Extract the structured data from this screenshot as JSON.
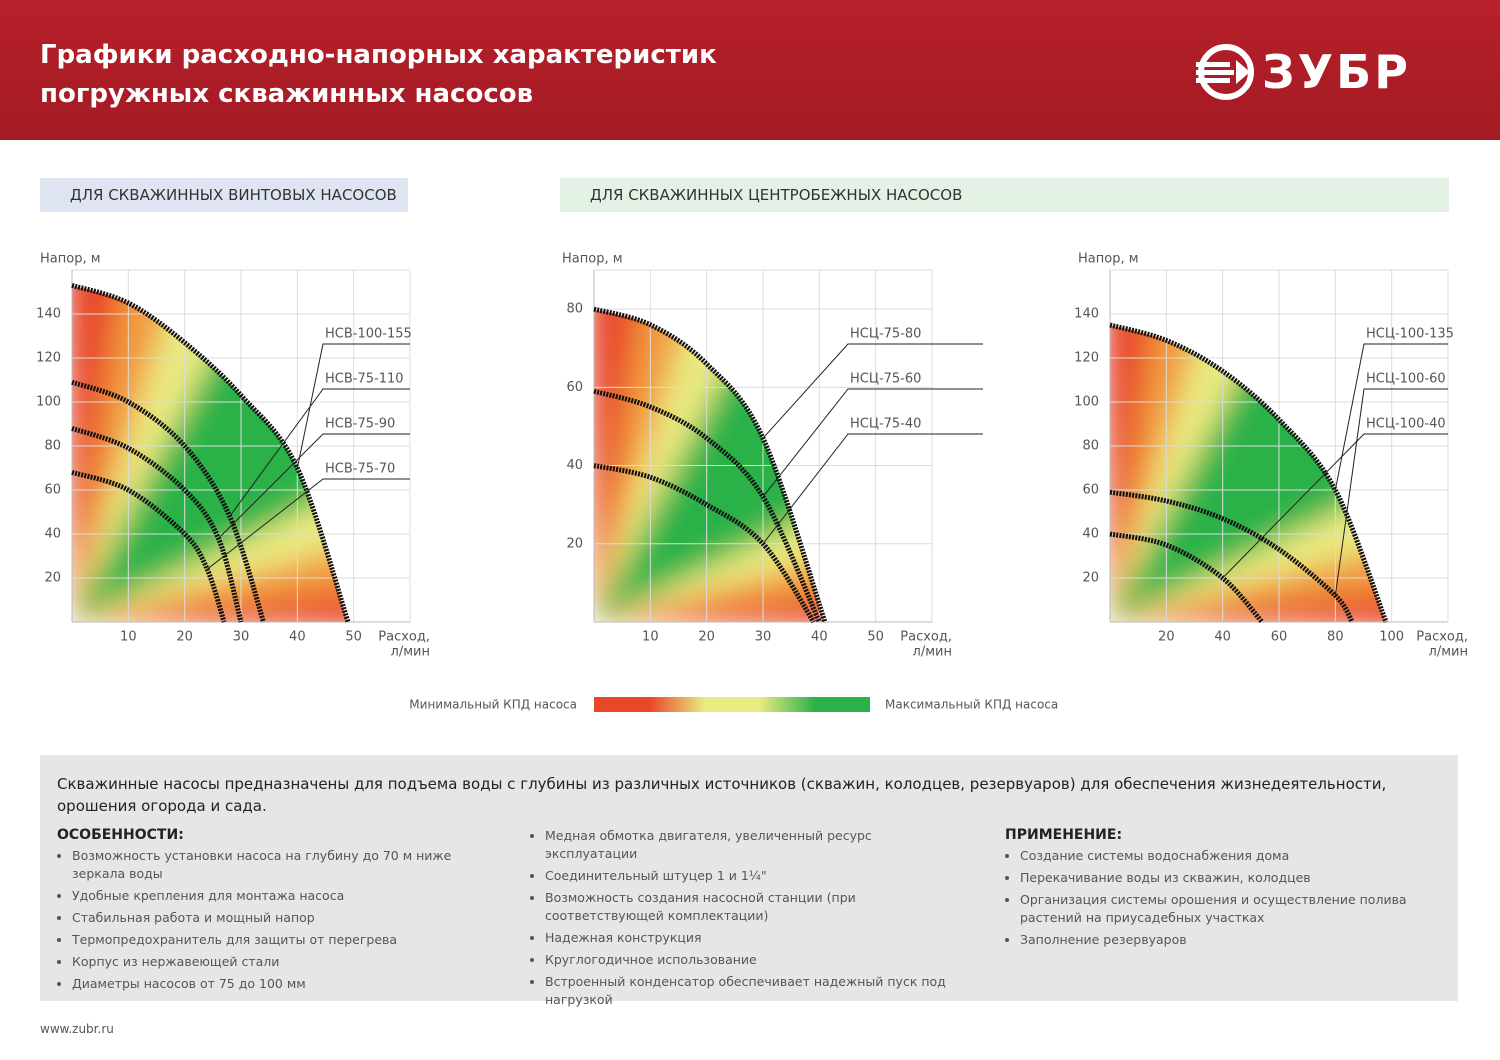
{
  "header": {
    "title": [
      "Графики расходно-напорных характеристик",
      "погружных скважинных насосов"
    ],
    "logo": "ЗУБР"
  },
  "sections": [
    "ДЛЯ СКВАЖИННЫХ ВИНТОВЫХ НАСОСОВ",
    "ДЛЯ СКВАЖИННЫХ ЦЕНТРОБЕЖНЫХ НАСОСОВ"
  ],
  "chart_data": [
    {
      "type": "line",
      "y_label": "Напор, м",
      "x_label": [
        "Расход,",
        "л/мин"
      ],
      "xlim": [
        0,
        60
      ],
      "xticks": [
        10,
        20,
        30,
        40,
        50
      ],
      "ylim": [
        0,
        160
      ],
      "yticks": [
        20,
        40,
        60,
        80,
        100,
        120,
        140
      ],
      "grid": true,
      "series": [
        {
          "name": "НСВ-100-155",
          "color": "#111111",
          "x": [
            0,
            10,
            20,
            30,
            40,
            49
          ],
          "values": [
            153,
            145,
            127,
            103,
            70,
            0
          ]
        },
        {
          "name": "НСВ-75-110",
          "color": "#111111",
          "x": [
            0,
            10,
            20,
            28,
            34
          ],
          "values": [
            109,
            100,
            80,
            48,
            0
          ]
        },
        {
          "name": "НСВ-75-90",
          "color": "#111111",
          "x": [
            0,
            10,
            20,
            26,
            30
          ],
          "values": [
            88,
            79,
            60,
            38,
            0
          ]
        },
        {
          "name": "НСВ-75-70",
          "color": "#111111",
          "x": [
            0,
            10,
            20,
            24,
            27
          ],
          "values": [
            68,
            60,
            40,
            24,
            0
          ]
        }
      ]
    },
    {
      "type": "line",
      "y_label": "Напор, м",
      "x_label": [
        "Расход,",
        "л/мин"
      ],
      "xlim": [
        0,
        60
      ],
      "xticks": [
        10,
        20,
        30,
        40,
        50
      ],
      "ylim": [
        0,
        90
      ],
      "yticks": [
        20,
        40,
        60,
        80
      ],
      "grid": true,
      "series": [
        {
          "name": "НСЦ-75-80",
          "color": "#111111",
          "x": [
            0,
            10,
            20,
            30,
            41
          ],
          "values": [
            80,
            76,
            66,
            47,
            0
          ]
        },
        {
          "name": "НСЦ-75-60",
          "color": "#111111",
          "x": [
            0,
            10,
            20,
            30,
            40
          ],
          "values": [
            59,
            55,
            47,
            32,
            0
          ]
        },
        {
          "name": "НСЦ-75-40",
          "color": "#111111",
          "x": [
            0,
            10,
            20,
            30,
            39
          ],
          "values": [
            40,
            37,
            30,
            20,
            0
          ]
        }
      ]
    },
    {
      "type": "line",
      "y_label": "Напор, м",
      "x_label": [
        "Расход,",
        "л/мин"
      ],
      "xlim": [
        0,
        120
      ],
      "xticks": [
        20,
        40,
        60,
        80,
        100
      ],
      "ylim": [
        0,
        160
      ],
      "yticks": [
        20,
        40,
        60,
        80,
        100,
        120,
        140
      ],
      "grid": true,
      "series": [
        {
          "name": "НСЦ-100-135",
          "color": "#111111",
          "x": [
            0,
            20,
            40,
            60,
            80,
            98
          ],
          "values": [
            135,
            128,
            114,
            92,
            60,
            0
          ]
        },
        {
          "name": "НСЦ-100-60",
          "color": "#111111",
          "x": [
            0,
            20,
            40,
            60,
            80,
            86
          ],
          "values": [
            59,
            55,
            47,
            33,
            12,
            0
          ]
        },
        {
          "name": "НСЦ-100-40",
          "color": "#111111",
          "x": [
            0,
            20,
            40,
            54
          ],
          "values": [
            40,
            35,
            20,
            0
          ]
        }
      ]
    }
  ],
  "efficiency_legend": {
    "min_label": "Минимальный КПД насоса",
    "max_label": "Максимальный КПД насоса",
    "colors": [
      "#e8472a",
      "#e8472a",
      "#e9ea80",
      "#e9ea80",
      "#2cb24a",
      "#2cb24a"
    ]
  },
  "description": {
    "intro": "Скважинные насосы предназначены для подъема воды с глубины из различных источников (скважин, колодцев, резервуаров) для обеспечения жизнедеятельности, орошения огорода и сада.",
    "features": {
      "title": "ОСОБЕННОСТИ:",
      "items": [
        "Возможность установки насоса на глубину до 70 м ниже зеркала воды",
        "Удобные крепления для монтажа насоса",
        "Стабильная работа и мощный напор",
        "Термопредохранитель для защиты от перегрева",
        "Корпус из нержавеющей стали",
        "Диаметры насосов от 75 до 100 мм"
      ]
    },
    "more_features": [
      "Медная обмотка двигателя, увеличенный ресурс эксплуатации",
      "Соединительный штуцер 1 и 1¼\"",
      "Возможность создания насосной станции (при соответствующей комплектации)",
      "Надежная конструкция",
      "Круглогодичное использование",
      "Встроенный конденсатор обеспечивает надежный пуск под нагрузкой"
    ],
    "application": {
      "title": "ПРИМЕНЕНИЕ:",
      "items": [
        "Создание системы водоснабжения дома",
        "Перекачивание воды из скважин, колодцев",
        "Организация системы орошения и осуществление полива растений на приусадебных участках",
        "Заполнение резервуаров"
      ]
    }
  },
  "footer": "www.zubr.ru"
}
